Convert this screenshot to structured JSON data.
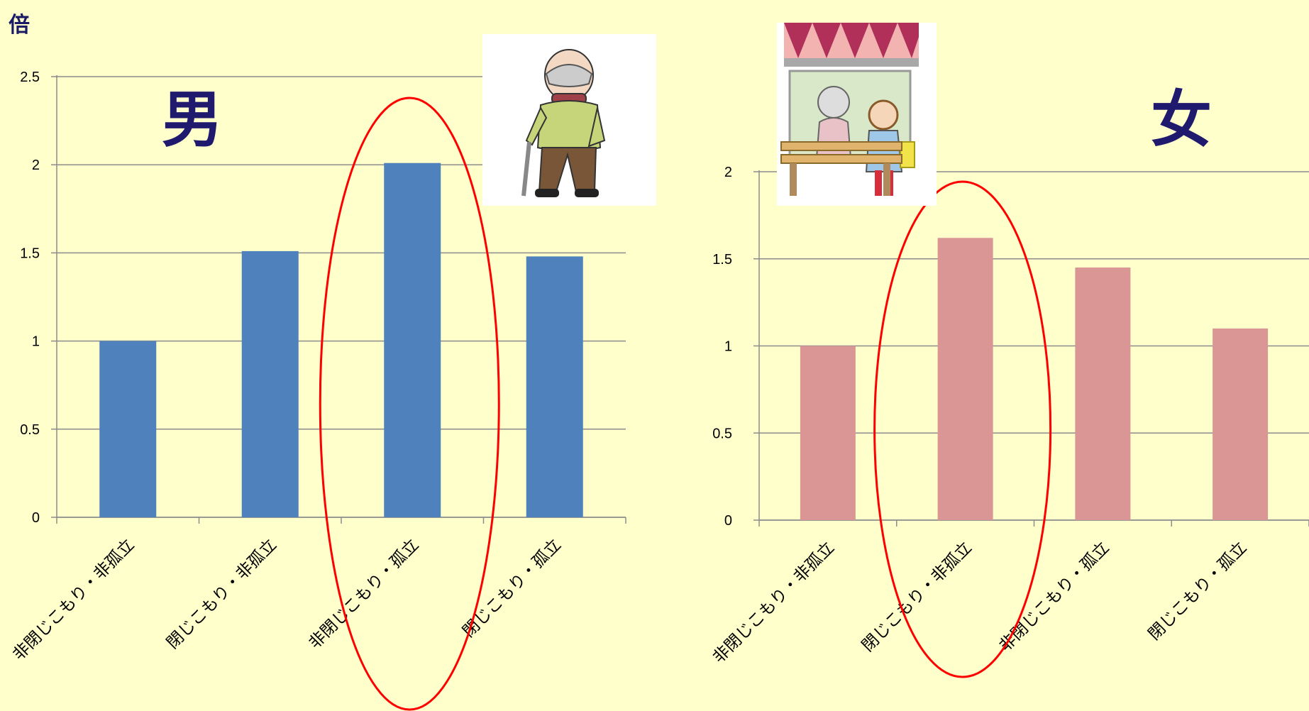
{
  "unit_label": "倍",
  "chart_data": [
    {
      "type": "bar",
      "gender_label": "男",
      "categories": [
        "非閉じこもり・非孤立",
        "閉じこもり・非孤立",
        "非閉じこもり・孤立",
        "閉じこもり・孤立"
      ],
      "values": [
        1.0,
        1.51,
        2.01,
        1.48
      ],
      "ylim": [
        0,
        2.5
      ],
      "yticks": [
        "0",
        "0.5",
        "1",
        "1.5",
        "2",
        "2.5"
      ],
      "bar_color": "#4f81bd",
      "highlight_index": 2,
      "highlight_color": "#ff0000",
      "grid": true
    },
    {
      "type": "bar",
      "gender_label": "女",
      "categories": [
        "非閉じこもり・非孤立",
        "閉じこもり・非孤立",
        "非閉じこもり・孤立",
        "閉じこもり・孤立"
      ],
      "values": [
        1.0,
        1.62,
        1.45,
        1.1
      ],
      "ylim": [
        0,
        2
      ],
      "yticks": [
        "0",
        "0.5",
        "1",
        "1.5",
        "2"
      ],
      "bar_color": "#d99694",
      "highlight_index": 1,
      "highlight_color": "#ff0000",
      "grid": true
    }
  ]
}
